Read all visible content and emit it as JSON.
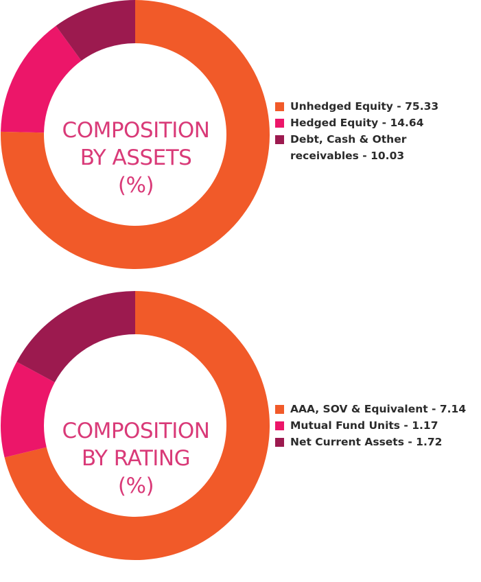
{
  "chart_data": [
    {
      "type": "pie",
      "title": "COMPOSITION BY ASSETS (%)",
      "title_lines": [
        "COMPOSITION",
        "BY ASSETS",
        "(%)"
      ],
      "categories": [
        "Unhedged Equity",
        "Hedged Equity",
        "Debt, Cash & Other receivables"
      ],
      "values": [
        75.33,
        14.64,
        10.03
      ],
      "legend_labels": [
        "Unhedged Equity - 75.33",
        "Hedged Equity - 14.64",
        "Debt, Cash & Other receivables - 10.03"
      ],
      "colors": [
        "#f15a29",
        "#ec1669",
        "#9c1a4f"
      ],
      "legend_placement": "right"
    },
    {
      "type": "pie",
      "title": "COMPOSITION BY RATING (%)",
      "title_lines": [
        "COMPOSITION",
        "BY RATING",
        "(%)"
      ],
      "categories": [
        "AAA, SOV & Equivalent",
        "Mutual Fund Units",
        "Net Current Assets"
      ],
      "values": [
        7.14,
        1.17,
        1.72
      ],
      "legend_labels": [
        "AAA, SOV & Equivalent - 7.14",
        "Mutual Fund Units - 1.17",
        "Net Current Assets - 1.72"
      ],
      "colors": [
        "#f15a29",
        "#ec1669",
        "#9c1a4f"
      ],
      "legend_placement": "right"
    }
  ]
}
